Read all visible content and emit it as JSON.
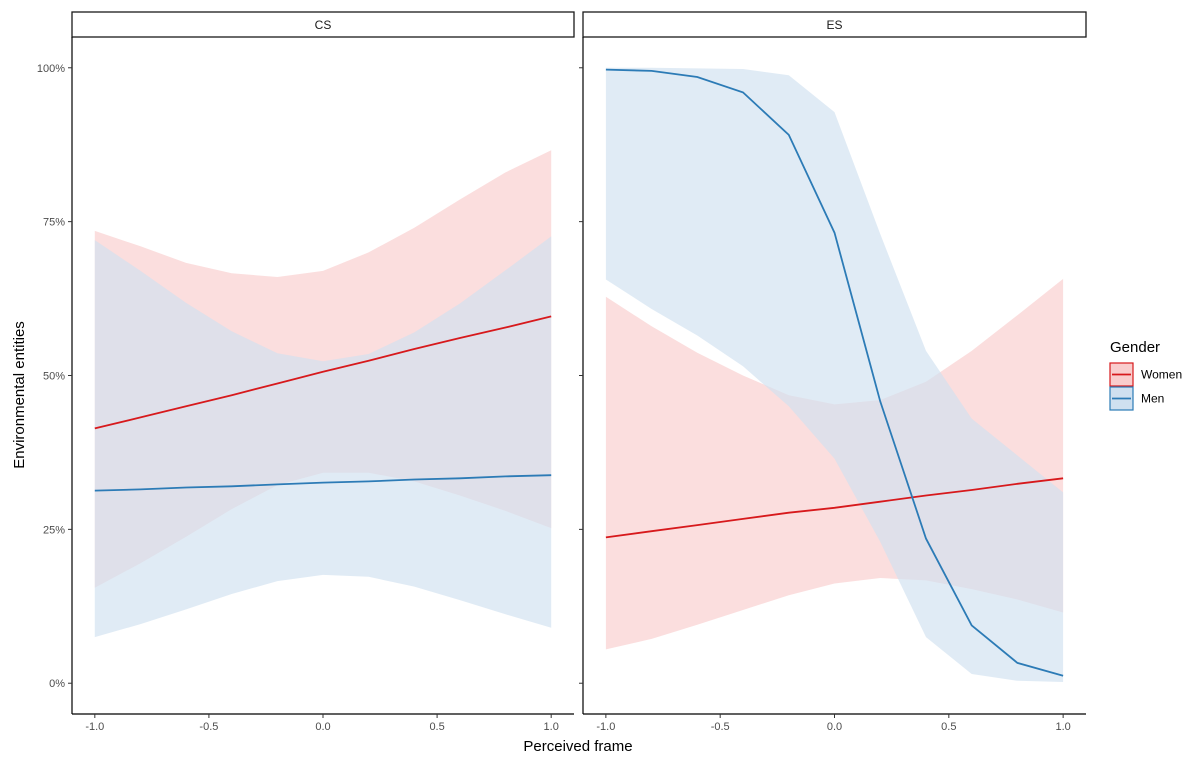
{
  "chart_data": {
    "type": "line",
    "xlabel": "Perceived frame",
    "ylabel": "Environmental entities",
    "xlim": [
      -1.1,
      1.1
    ],
    "ylim": [
      -0.05,
      1.05
    ],
    "x_ticks": [
      -1.0,
      -0.5,
      0.0,
      0.5,
      1.0
    ],
    "x_tick_labels": [
      "-1.0",
      "-0.5",
      "0.0",
      "0.5",
      "1.0"
    ],
    "y_ticks": [
      0,
      0.25,
      0.5,
      0.75,
      1.0
    ],
    "y_tick_labels": [
      "0%",
      "25%",
      "50%",
      "75%",
      "100%"
    ],
    "legend": {
      "title": "Gender",
      "position": "right",
      "entries": [
        {
          "name": "Women",
          "line_color": "#d7191c",
          "fill_color": "#f9cdcd"
        },
        {
          "name": "Men",
          "line_color": "#2c7bb6",
          "fill_color": "#cfe0f0"
        }
      ]
    },
    "panels": [
      {
        "title": "CS",
        "series": [
          {
            "name": "Women",
            "x": [
              -1.0,
              -0.8,
              -0.6,
              -0.4,
              -0.2,
              0.0,
              0.2,
              0.4,
              0.6,
              0.8,
              1.0
            ],
            "values": [
              0.414,
              0.432,
              0.45,
              0.468,
              0.487,
              0.506,
              0.524,
              0.543,
              0.561,
              0.578,
              0.596
            ],
            "lower": [
              0.155,
              0.195,
              0.238,
              0.283,
              0.322,
              0.342,
              0.342,
              0.328,
              0.305,
              0.28,
              0.252
            ],
            "upper": [
              0.735,
              0.71,
              0.683,
              0.666,
              0.66,
              0.67,
              0.7,
              0.74,
              0.786,
              0.83,
              0.866
            ]
          },
          {
            "name": "Men",
            "x": [
              -1.0,
              -0.8,
              -0.6,
              -0.4,
              -0.2,
              0.0,
              0.2,
              0.4,
              0.6,
              0.8,
              1.0
            ],
            "values": [
              0.313,
              0.315,
              0.318,
              0.32,
              0.323,
              0.326,
              0.328,
              0.331,
              0.333,
              0.336,
              0.338
            ],
            "lower": [
              0.075,
              0.096,
              0.12,
              0.145,
              0.166,
              0.176,
              0.173,
              0.157,
              0.135,
              0.112,
              0.09
            ],
            "upper": [
              0.72,
              0.67,
              0.618,
              0.572,
              0.536,
              0.523,
              0.535,
              0.57,
              0.617,
              0.671,
              0.726
            ]
          }
        ]
      },
      {
        "title": "ES",
        "series": [
          {
            "name": "Women",
            "x": [
              -1.0,
              -0.8,
              -0.6,
              -0.4,
              -0.2,
              0.0,
              0.2,
              0.4,
              0.6,
              0.8,
              1.0
            ],
            "values": [
              0.237,
              0.247,
              0.257,
              0.267,
              0.277,
              0.285,
              0.295,
              0.305,
              0.314,
              0.324,
              0.333
            ],
            "lower": [
              0.055,
              0.072,
              0.095,
              0.119,
              0.143,
              0.162,
              0.171,
              0.167,
              0.153,
              0.136,
              0.115
            ],
            "upper": [
              0.628,
              0.58,
              0.537,
              0.5,
              0.468,
              0.453,
              0.46,
              0.49,
              0.54,
              0.598,
              0.657
            ]
          },
          {
            "name": "Men",
            "x": [
              -1.0,
              -0.8,
              -0.6,
              -0.4,
              -0.2,
              0.0,
              0.2,
              0.4,
              0.6,
              0.8,
              1.0
            ],
            "values": [
              0.997,
              0.995,
              0.985,
              0.96,
              0.891,
              0.732,
              0.458,
              0.235,
              0.094,
              0.033,
              0.012
            ],
            "lower": [
              0.656,
              0.608,
              0.565,
              0.515,
              0.45,
              0.365,
              0.23,
              0.075,
              0.015,
              0.004,
              0.002
            ],
            "upper": [
              1.0,
              1.0,
              0.999,
              0.998,
              0.988,
              0.928,
              0.73,
              0.54,
              0.43,
              0.37,
              0.31
            ]
          }
        ]
      }
    ]
  }
}
